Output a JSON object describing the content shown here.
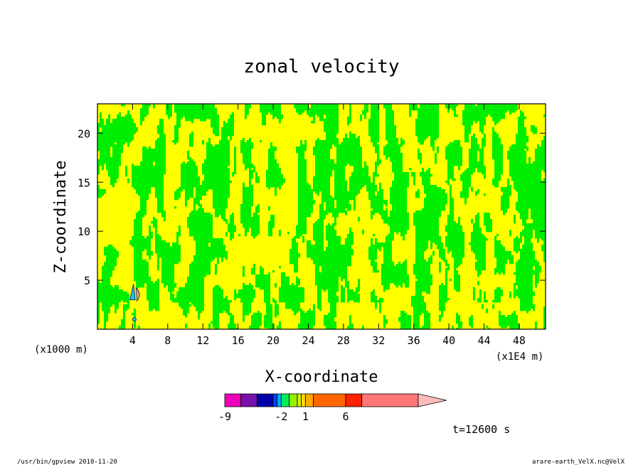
{
  "chart_data": {
    "type": "heatmap",
    "title": "zonal velocity",
    "xlabel": "X-coordinate",
    "ylabel": "Z-coordinate",
    "x_unit_left": "(x1000 m)",
    "x_unit_right": "(x1E4 m)",
    "xlim": [
      0,
      51
    ],
    "ylim": [
      0,
      23
    ],
    "x_ticks": [
      4,
      8,
      12,
      16,
      20,
      24,
      28,
      32,
      36,
      40,
      44,
      48
    ],
    "x_tick_labels": [
      "4",
      "8",
      "12",
      "16",
      "20",
      "24",
      "28",
      "32",
      "36",
      "40",
      "44",
      "48"
    ],
    "y_ticks": [
      5,
      10,
      15,
      20
    ],
    "y_tick_labels": [
      "5",
      "10",
      "15",
      "20"
    ],
    "colors": {
      "positive": "#00ee00",
      "negative": "#ffff00",
      "cyan_patch": "#00ccff",
      "orange_patch": "#ffaa55",
      "contour": "#2a2a7a"
    },
    "colorbar": {
      "colors": [
        "#ee00bb",
        "#7711aa",
        "#0000aa",
        "#0044ee",
        "#00aaff",
        "#00ee55",
        "#99ee00",
        "#ddee00",
        "#ffdd00",
        "#ffaa00",
        "#ff6600",
        "#ff2200",
        "#ff7777"
      ],
      "boundaries": [
        -9,
        -7,
        -5,
        -3,
        -2.5,
        -2,
        -1,
        0,
        0.5,
        1,
        2,
        6,
        8,
        15
      ],
      "tick_labels": [
        "-9",
        "-2",
        "1",
        "6"
      ],
      "tick_values": [
        -9,
        -2,
        1,
        6
      ]
    },
    "time_label": "t=12600 s"
  },
  "footer": {
    "left": "/usr/bin/gpview   2010-11-20",
    "right": "arare-earth_VelX.nc@VelX"
  }
}
